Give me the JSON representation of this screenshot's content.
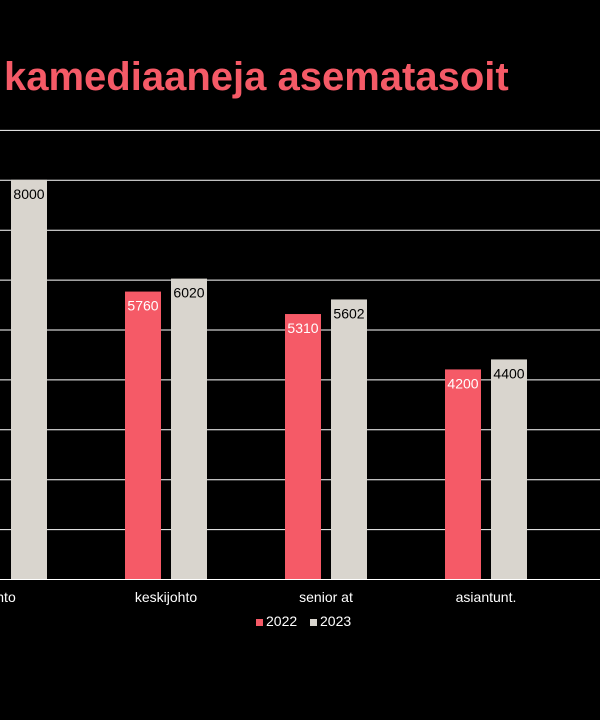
{
  "chart_data": {
    "type": "bar",
    "title": "kamediaaneja asematasoit",
    "categories": [
      "hto",
      "keskijohto",
      "senior at",
      "asiantunt."
    ],
    "series": [
      {
        "name": "2022",
        "color": "#f55a67",
        "values": [
          null,
          5760,
          5310,
          4200
        ]
      },
      {
        "name": "2023",
        "color": "#d9d5ce",
        "values": [
          8000,
          6020,
          5602,
          4400
        ]
      }
    ],
    "ylim": [
      0,
      10000
    ],
    "grid": true,
    "legend": "bottom",
    "colors": {
      "background": "#000000",
      "title": "#f55a67",
      "gridline": "#ffffff",
      "text": "#ffffff",
      "label_on_2022": "#ffffff",
      "label_on_2023": "#000000"
    }
  }
}
